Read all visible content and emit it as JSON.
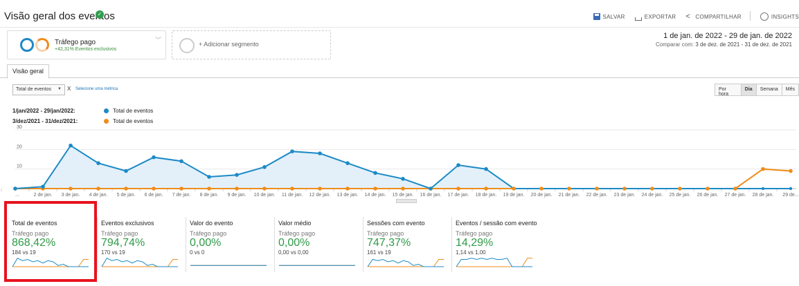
{
  "header": {
    "title": "Visão geral dos eventos",
    "actions": [
      {
        "label": "SALVAR",
        "icon": "save-icon"
      },
      {
        "label": "EXPORTAR",
        "icon": "export-icon"
      },
      {
        "label": "COMPARTILHAR",
        "icon": "share-icon"
      },
      {
        "label": "INSIGHTS",
        "icon": "insights-icon"
      }
    ]
  },
  "segments": {
    "active": {
      "name": "Tráfego pago",
      "subtitle": "+42,31% Eventos exclusivos"
    },
    "add_label": "+ Adicionar segmento"
  },
  "date_range": {
    "main": "1 de jan. de 2022 - 29 de jan. de 2022",
    "compare_prefix": "Comparar com:",
    "compare": "3 de dez. de 2021 - 31 de dez. de 2021"
  },
  "tabs": [
    {
      "label": "Visão geral"
    }
  ],
  "controls": {
    "metric": "Total de eventos",
    "remove": "X",
    "add_metric": "Selecione uma métrica",
    "granularity": [
      "Por hora",
      "Dia",
      "Semana",
      "Mês"
    ],
    "granularity_active": "Dia"
  },
  "colors": {
    "current": "#1c8ac6",
    "previous": "#ef8c1a",
    "area": "#e3f0fa",
    "positive": "#2e9a47"
  },
  "chart_data": {
    "type": "line",
    "title": "",
    "ylim": [
      0,
      30
    ],
    "yticks": [
      "30",
      "20",
      "10"
    ],
    "yticks_values": [
      30,
      20,
      10
    ],
    "x": [
      "...",
      "2 de jan.",
      "3 de jan.",
      "4 de jan.",
      "5 de jan.",
      "6 de jan.",
      "7 de jan.",
      "8 de jan.",
      "9 de jan.",
      "10 de jan.",
      "11 de jan.",
      "12 de jan.",
      "13 de jan.",
      "14 de jan.",
      "15 de jan.",
      "16 de jan.",
      "17 de jan.",
      "18 de jan.",
      "19 de jan.",
      "20 de jan.",
      "21 de jan.",
      "22 de jan.",
      "23 de jan.",
      "24 de jan.",
      "25 de jan.",
      "26 de jan.",
      "27 de jan.",
      "28 de jan.",
      "29 de..."
    ],
    "series": [
      {
        "name": "Total de eventos",
        "range": "1/jan/2022 - 29/jan/2022:",
        "values": [
          0,
          1,
          22,
          13,
          9,
          16,
          14,
          6,
          7,
          11,
          19,
          18,
          13,
          8,
          5,
          0,
          12,
          10,
          0,
          0,
          0,
          0,
          0,
          0,
          0,
          0,
          0,
          0,
          0
        ]
      },
      {
        "name": "Total de eventos",
        "range": "3/dez/2021 - 31/dez/2021:",
        "values": [
          0,
          0,
          0,
          0,
          0,
          0,
          0,
          0,
          0,
          0,
          0,
          0,
          0,
          0,
          0,
          0,
          0,
          0,
          0,
          0,
          0,
          0,
          0,
          0,
          0,
          0,
          0,
          10,
          9
        ]
      }
    ]
  },
  "scorecards": [
    {
      "name": "Total de eventos",
      "segment": "Tráfego pago",
      "value": "868,42%",
      "compare": "184 vs 19",
      "spark_cur": [
        0,
        7,
        5,
        6,
        4,
        5,
        3,
        5,
        4,
        1,
        2,
        0,
        0,
        0,
        0,
        0
      ],
      "spark_prev": [
        0,
        0,
        0,
        0,
        0,
        0,
        0,
        0,
        0,
        0,
        0,
        0,
        0,
        0,
        6,
        6
      ]
    },
    {
      "name": "Eventos exclusivos",
      "segment": "Tráfego pago",
      "value": "794,74%",
      "compare": "170 vs 19",
      "spark_cur": [
        0,
        7,
        5,
        6,
        4,
        5,
        3,
        5,
        4,
        1,
        2,
        0,
        0,
        0,
        0,
        0
      ],
      "spark_prev": [
        0,
        0,
        0,
        0,
        0,
        0,
        0,
        0,
        0,
        0,
        0,
        0,
        0,
        0,
        6,
        6
      ]
    },
    {
      "name": "Valor do evento",
      "segment": "Tráfego pago",
      "value": "0,00%",
      "compare": "0 vs 0",
      "spark_cur": [
        1,
        1,
        1,
        1,
        1,
        1,
        1,
        1,
        1,
        1,
        1,
        1,
        1,
        1,
        1,
        1
      ],
      "spark_prev": [
        1,
        1,
        1,
        1,
        1,
        1,
        1,
        1,
        1,
        1,
        1,
        1,
        1,
        1,
        1,
        1
      ]
    },
    {
      "name": "Valor médio",
      "segment": "Tráfego pago",
      "value": "0,00%",
      "compare": "0,00 vs 0,00",
      "spark_cur": [
        1,
        1,
        1,
        1,
        1,
        1,
        1,
        1,
        1,
        1,
        1,
        1,
        1,
        1,
        1,
        1
      ],
      "spark_prev": [
        1,
        1,
        1,
        1,
        1,
        1,
        1,
        1,
        1,
        1,
        1,
        1,
        1,
        1,
        1,
        1
      ]
    },
    {
      "name": "Sessões com evento",
      "segment": "Tráfego pago",
      "value": "747,37%",
      "compare": "161 vs 19",
      "spark_cur": [
        0,
        6,
        5,
        6,
        4,
        5,
        3,
        5,
        4,
        1,
        2,
        0,
        0,
        0,
        0,
        0
      ],
      "spark_prev": [
        0,
        0,
        0,
        0,
        0,
        0,
        0,
        0,
        0,
        0,
        0,
        0,
        0,
        0,
        6,
        6
      ]
    },
    {
      "name": "Eventos / sessão com evento",
      "segment": "Tráfego pago",
      "value": "14,29%",
      "compare": "1,14 vs 1,00",
      "spark_cur": [
        0,
        6,
        6,
        7,
        6,
        7,
        6,
        7,
        6,
        6,
        7,
        0,
        0,
        0,
        0,
        0
      ],
      "spark_prev": [
        0,
        0,
        0,
        0,
        0,
        0,
        0,
        0,
        0,
        0,
        0,
        0,
        0,
        0,
        7,
        7
      ]
    }
  ]
}
